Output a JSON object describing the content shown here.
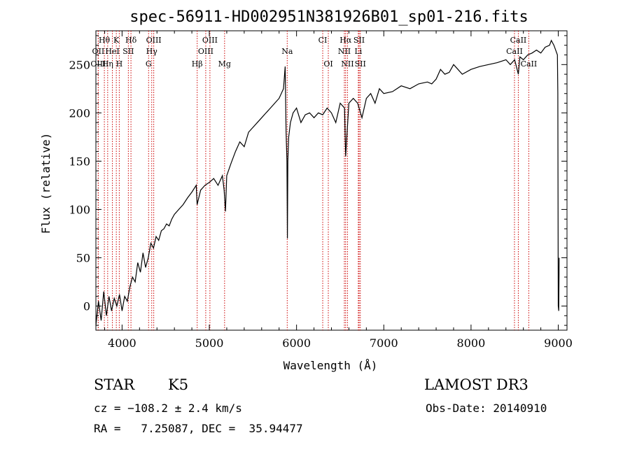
{
  "chart_data": {
    "type": "line",
    "title": "spec-56911-HD002951N381926B01_sp01-216.fits",
    "xlabel": "Wavelength (Å)",
    "ylabel": "Flux (relative)",
    "xlim": [
      3700,
      9100
    ],
    "ylim": [
      -25,
      285
    ],
    "xticks": [
      4000,
      5000,
      6000,
      7000,
      8000,
      9000
    ],
    "yticks": [
      0,
      50,
      100,
      150,
      200,
      250
    ],
    "grid": false,
    "series_color": "#000000",
    "marker_color": "#cc0000",
    "series": [
      {
        "x": [
          3700,
          3730,
          3760,
          3790,
          3820,
          3850,
          3880,
          3910,
          3940,
          3970,
          4000,
          4030,
          4060,
          4090,
          4120,
          4150,
          4180,
          4210,
          4240,
          4270,
          4300,
          4330,
          4360,
          4390,
          4420,
          4450,
          4480,
          4510,
          4540,
          4570,
          4600,
          4650,
          4700,
          4750,
          4800,
          4850,
          4860,
          4900,
          4950,
          5000,
          5050,
          5100,
          5150,
          5170,
          5185,
          5200,
          5250,
          5300,
          5350,
          5400,
          5450,
          5500,
          5550,
          5600,
          5650,
          5700,
          5750,
          5800,
          5850,
          5870,
          5880,
          5890,
          5895,
          5900,
          5910,
          5930,
          5960,
          6000,
          6050,
          6100,
          6150,
          6200,
          6250,
          6300,
          6350,
          6400,
          6450,
          6500,
          6550,
          6563,
          6600,
          6650,
          6700,
          6750,
          6800,
          6850,
          6900,
          6950,
          7000,
          7100,
          7200,
          7300,
          7400,
          7500,
          7550,
          7600,
          7650,
          7700,
          7750,
          7800,
          7850,
          7900,
          8000,
          8100,
          8200,
          8300,
          8400,
          8450,
          8500,
          8542,
          8560,
          8600,
          8650,
          8700,
          8750,
          8800,
          8850,
          8900,
          8920,
          8950,
          8970,
          8990,
          8995,
          9000,
          9005,
          9010
        ],
        "y": [
          -20,
          5,
          -15,
          15,
          -10,
          10,
          -5,
          8,
          0,
          12,
          -5,
          10,
          5,
          20,
          30,
          25,
          45,
          35,
          55,
          40,
          50,
          65,
          60,
          72,
          68,
          78,
          80,
          85,
          83,
          90,
          95,
          100,
          105,
          112,
          118,
          125,
          105,
          120,
          125,
          128,
          132,
          125,
          135,
          120,
          98,
          135,
          148,
          160,
          170,
          165,
          180,
          185,
          190,
          195,
          200,
          205,
          210,
          215,
          225,
          248,
          180,
          150,
          70,
          150,
          175,
          190,
          200,
          205,
          190,
          198,
          200,
          195,
          200,
          198,
          205,
          200,
          190,
          210,
          205,
          155,
          210,
          215,
          210,
          195,
          215,
          220,
          210,
          225,
          220,
          222,
          228,
          225,
          230,
          232,
          230,
          235,
          245,
          240,
          242,
          250,
          245,
          240,
          245,
          248,
          250,
          252,
          255,
          250,
          255,
          240,
          258,
          255,
          260,
          262,
          265,
          262,
          268,
          270,
          275,
          270,
          265,
          260,
          220,
          0,
          -5,
          50
        ]
      }
    ],
    "lines_top": [
      {
        "label": "Hθ",
        "x": 3797
      },
      {
        "label": "K",
        "x": 3934
      },
      {
        "label": "Hδ",
        "x": 4102
      },
      {
        "label": "OIII",
        "x": 4363
      },
      {
        "label": "OIII",
        "x": 5007
      },
      {
        "label": "CI",
        "x": 6300
      },
      {
        "label": "Hα",
        "x": 6563
      },
      {
        "label": "SII",
        "x": 6717
      },
      {
        "label": "CaII",
        "x": 8542
      }
    ],
    "lines_mid": [
      {
        "label": "OII",
        "x": 3727
      },
      {
        "label": "HeI",
        "x": 3889
      },
      {
        "label": "SII",
        "x": 4072
      },
      {
        "label": "Hγ",
        "x": 4340
      },
      {
        "label": "OIII",
        "x": 4959
      },
      {
        "label": "Na",
        "x": 5893
      },
      {
        "label": "NII",
        "x": 6548
      },
      {
        "label": "Li",
        "x": 6708
      },
      {
        "label": "CaII",
        "x": 8498
      }
    ],
    "lines_bot": [
      {
        "label": "OIII",
        "x": 3727
      },
      {
        "label": "Hη",
        "x": 3835
      },
      {
        "label": "H",
        "x": 3968
      },
      {
        "label": "G",
        "x": 4304
      },
      {
        "label": "Hβ",
        "x": 4861
      },
      {
        "label": "Mg",
        "x": 5175
      },
      {
        "label": "OI",
        "x": 6364
      },
      {
        "label": "NII",
        "x": 6584
      },
      {
        "label": "SII",
        "x": 6731
      },
      {
        "label": "CaII",
        "x": 8662
      }
    ]
  },
  "info": {
    "class_label": "STAR",
    "subclass": "K5",
    "survey": "LAMOST DR3",
    "cz": "cz = −108.2 ± 2.4 km/s",
    "obs_date": "Obs-Date: 20140910",
    "coords": "RA =   7.25087, DEC =  35.94477"
  }
}
